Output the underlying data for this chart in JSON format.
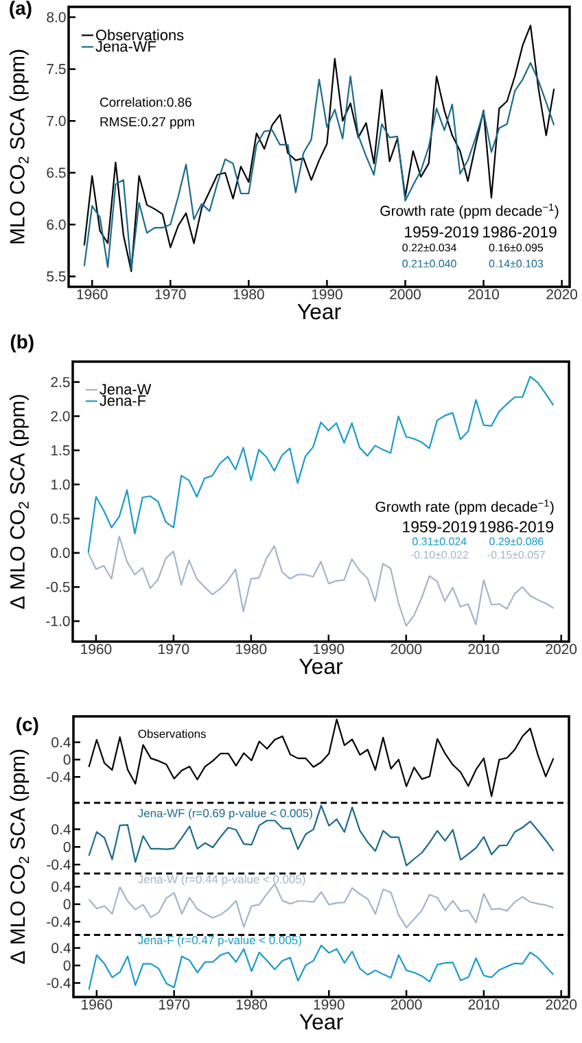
{
  "chart_data": [
    {
      "type": "line",
      "title": "(a)",
      "xlabel": "Year",
      "ylabel": "MLO  CO$_{2}$ SCA (ppm)",
      "x": [
        1959,
        1960,
        1961,
        1962,
        1963,
        1964,
        1965,
        1966,
        1967,
        1968,
        1969,
        1970,
        1971,
        1972,
        1973,
        1974,
        1975,
        1976,
        1977,
        1978,
        1979,
        1980,
        1981,
        1982,
        1983,
        1984,
        1985,
        1986,
        1987,
        1988,
        1989,
        1990,
        1991,
        1992,
        1993,
        1994,
        1995,
        1996,
        1997,
        1998,
        1999,
        2000,
        2001,
        2002,
        2003,
        2004,
        2005,
        2006,
        2007,
        2008,
        2009,
        2010,
        2011,
        2012,
        2013,
        2014,
        2015,
        2016,
        2017,
        2018,
        2019
      ],
      "xlim": [
        1957,
        2021
      ],
      "xticks": [
        1960,
        1970,
        1980,
        1990,
        2000,
        2010,
        2020
      ],
      "ylim": [
        5.4,
        8.1
      ],
      "yticks": [
        {
          "value": 5.5,
          "label": "5.5"
        },
        {
          "value": 6.0,
          "label": "6.0"
        },
        {
          "value": 6.5,
          "label": "6.5"
        },
        {
          "value": 7.0,
          "label": "7.0"
        },
        {
          "value": 7.5,
          "label": "7.5"
        },
        {
          "value": 8.0,
          "label": "8.0"
        }
      ],
      "legend": "top left",
      "series": [
        {
          "name": "Observations",
          "color": "#000000",
          "values": [
            5.8,
            6.47,
            5.94,
            5.82,
            6.6,
            5.9,
            5.55,
            6.47,
            6.19,
            6.15,
            6.1,
            5.78,
            5.99,
            6.11,
            5.82,
            6.16,
            6.32,
            6.48,
            6.5,
            6.25,
            6.56,
            6.41,
            6.88,
            6.73,
            6.96,
            7.06,
            6.69,
            6.62,
            6.64,
            6.43,
            6.62,
            6.78,
            7.6,
            7.0,
            7.17,
            6.84,
            6.98,
            6.59,
            7.3,
            6.61,
            6.83,
            6.27,
            6.71,
            6.46,
            6.59,
            7.43,
            7.1,
            6.86,
            6.71,
            6.42,
            6.77,
            7.1,
            6.26,
            7.12,
            7.19,
            7.43,
            7.73,
            7.92,
            7.32,
            6.86,
            7.31
          ]
        },
        {
          "name": "Jena-WF",
          "color": "#1b6a8c",
          "values": [
            5.6,
            6.18,
            6.07,
            5.59,
            6.39,
            6.43,
            5.57,
            6.21,
            5.92,
            5.97,
            5.97,
            6.0,
            6.27,
            6.58,
            6.05,
            6.2,
            6.13,
            6.4,
            6.63,
            6.59,
            6.3,
            6.3,
            6.77,
            6.9,
            6.91,
            6.77,
            6.77,
            6.31,
            6.69,
            6.82,
            7.4,
            6.94,
            7.11,
            6.83,
            7.43,
            6.86,
            6.66,
            6.48,
            6.97,
            6.84,
            6.85,
            6.23,
            6.38,
            6.52,
            6.75,
            7.12,
            6.91,
            7.16,
            6.49,
            6.62,
            6.84,
            7.09,
            6.7,
            6.93,
            6.97,
            7.29,
            7.4,
            7.56,
            7.39,
            7.18,
            6.96
          ]
        }
      ],
      "annotations": [
        "Correlation:0.86",
        "RMSE:0.27 ppm",
        "Growth rate (ppm decade$^{−1}$)",
        "1959-2019",
        "1986-2019",
        "0.22±0.034",
        "0.16±0.095",
        "0.21±0.040",
        "0.14±0.103"
      ]
    },
    {
      "type": "line",
      "title": "(b)",
      "xlabel": "Year",
      "ylabel": "Δ MLO  CO$_{2}$ SCA (ppm)",
      "x": [
        1959,
        1960,
        1961,
        1962,
        1963,
        1964,
        1965,
        1966,
        1967,
        1968,
        1969,
        1970,
        1971,
        1972,
        1973,
        1974,
        1975,
        1976,
        1977,
        1978,
        1979,
        1980,
        1981,
        1982,
        1983,
        1984,
        1985,
        1986,
        1987,
        1988,
        1989,
        1990,
        1991,
        1992,
        1993,
        1994,
        1995,
        1996,
        1997,
        1998,
        1999,
        2000,
        2001,
        2002,
        2003,
        2004,
        2005,
        2006,
        2007,
        2008,
        2009,
        2010,
        2011,
        2012,
        2013,
        2014,
        2015,
        2016,
        2017,
        2018,
        2019
      ],
      "xlim": [
        1957,
        2021
      ],
      "xticks": [
        1960,
        1970,
        1980,
        1990,
        2000,
        2010,
        2020
      ],
      "ylim": [
        -1.3,
        2.8
      ],
      "yticks": [
        {
          "value": -1.0,
          "label": "-1.0"
        },
        {
          "value": -0.5,
          "label": "-0.5"
        },
        {
          "value": 0.0,
          "label": "0.0"
        },
        {
          "value": 0.5,
          "label": "0.5"
        },
        {
          "value": 1.0,
          "label": "1.0"
        },
        {
          "value": 1.5,
          "label": "1.5"
        },
        {
          "value": 2.0,
          "label": "2.0"
        },
        {
          "value": 2.5,
          "label": "2.5"
        }
      ],
      "legend": "top left",
      "series": [
        {
          "name": "Jena-W",
          "color": "#a3b5c9",
          "values": [
            0.0,
            -0.24,
            -0.19,
            -0.38,
            0.24,
            -0.13,
            -0.32,
            -0.22,
            -0.52,
            -0.39,
            -0.08,
            0.02,
            -0.47,
            -0.11,
            -0.38,
            -0.5,
            -0.61,
            -0.53,
            -0.41,
            -0.24,
            -0.86,
            -0.38,
            -0.37,
            -0.08,
            0.1,
            -0.28,
            -0.38,
            -0.32,
            -0.32,
            -0.35,
            -0.13,
            -0.45,
            -0.41,
            -0.4,
            -0.09,
            -0.26,
            -0.37,
            -0.71,
            -0.16,
            -0.23,
            -0.73,
            -1.07,
            -0.92,
            -0.66,
            -0.34,
            -0.42,
            -0.71,
            -0.51,
            -0.79,
            -0.75,
            -1.05,
            -0.4,
            -0.76,
            -0.75,
            -0.82,
            -0.6,
            -0.5,
            -0.63,
            -0.69,
            -0.74,
            -0.81
          ]
        },
        {
          "name": "Jena-F",
          "color": "#1a9bc9",
          "values": [
            0.0,
            0.82,
            0.62,
            0.37,
            0.53,
            0.92,
            0.28,
            0.81,
            0.83,
            0.75,
            0.45,
            0.37,
            1.13,
            1.06,
            0.82,
            1.09,
            1.13,
            1.31,
            1.41,
            1.22,
            1.54,
            1.06,
            1.51,
            1.4,
            1.2,
            1.43,
            1.53,
            1.02,
            1.41,
            1.55,
            1.91,
            1.79,
            1.9,
            1.61,
            1.9,
            1.54,
            1.42,
            1.57,
            1.51,
            1.46,
            2.0,
            1.7,
            1.67,
            1.62,
            1.53,
            1.94,
            2.01,
            2.05,
            1.66,
            1.78,
            2.24,
            1.87,
            1.86,
            2.07,
            2.18,
            2.28,
            2.28,
            2.58,
            2.49,
            2.33,
            2.16
          ]
        }
      ],
      "annotations": [
        "Growth rate (ppm decade$^{−1}$)",
        "1959-2019",
        "1986-2019",
        "0.31±0.024",
        "0.29±0.086",
        "-0.10±0.022",
        "-0.15±0.057"
      ]
    },
    {
      "type": "line",
      "title": "(c)",
      "ylabel": "Δ MLO  CO$_{2}$ SCA (ppm)",
      "x": [
        1959,
        1960,
        1961,
        1962,
        1963,
        1964,
        1965,
        1966,
        1967,
        1968,
        1969,
        1970,
        1971,
        1972,
        1973,
        1974,
        1975,
        1976,
        1977,
        1978,
        1979,
        1980,
        1981,
        1982,
        1983,
        1984,
        1985,
        1986,
        1987,
        1988,
        1989,
        1990,
        1991,
        1992,
        1993,
        1994,
        1995,
        1996,
        1997,
        1998,
        1999,
        2000,
        2001,
        2002,
        2003,
        2004,
        2005,
        2006,
        2007,
        2008,
        2009,
        2010,
        2011,
        2012,
        2013,
        2014,
        2015,
        2016,
        2017,
        2018,
        2019
      ],
      "xlim": [
        1957,
        2021
      ],
      "ylim": [
        -1.0,
        1.0
      ],
      "yticks": [
        -0.4,
        0,
        0.4
      ],
      "tick_labels": "y",
      "ref_lines": [
        {
          "axis": "y",
          "value": -1.0,
          "line_style": "dashed"
        }
      ],
      "series": [
        {
          "name": "Observations",
          "color": "#000000",
          "values": [
            -0.17,
            0.46,
            -0.08,
            -0.24,
            0.52,
            -0.23,
            -0.56,
            0.34,
            0.03,
            -0.03,
            -0.11,
            -0.44,
            -0.25,
            -0.16,
            -0.46,
            -0.16,
            -0.03,
            0.14,
            0.14,
            -0.14,
            0.15,
            -0.02,
            0.42,
            0.25,
            0.46,
            0.54,
            0.12,
            0.03,
            0.03,
            -0.17,
            -0.06,
            0.14,
            0.93,
            0.33,
            0.47,
            0.11,
            0.23,
            -0.24,
            0.51,
            -0.21,
            0.0,
            -0.62,
            -0.18,
            -0.45,
            -0.39,
            0.48,
            0.14,
            -0.12,
            -0.29,
            -0.61,
            -0.23,
            0.03,
            -0.85,
            0.0,
            0.04,
            0.23,
            0.54,
            0.72,
            0.1,
            -0.39,
            0.03
          ]
        }
      ]
    },
    {
      "type": "line",
      "x": [
        1959,
        1960,
        1961,
        1962,
        1963,
        1964,
        1965,
        1966,
        1967,
        1968,
        1969,
        1970,
        1971,
        1972,
        1973,
        1974,
        1975,
        1976,
        1977,
        1978,
        1979,
        1980,
        1981,
        1982,
        1983,
        1984,
        1985,
        1986,
        1987,
        1988,
        1989,
        1990,
        1991,
        1992,
        1993,
        1994,
        1995,
        1996,
        1997,
        1998,
        1999,
        2000,
        2001,
        2002,
        2003,
        2004,
        2005,
        2006,
        2007,
        2008,
        2009,
        2010,
        2011,
        2012,
        2013,
        2014,
        2015,
        2016,
        2017,
        2018,
        2019
      ],
      "xlim": [
        1957,
        2021
      ],
      "ylim": [
        -0.6,
        1.0
      ],
      "yticks": [
        -0.4,
        0,
        0.4
      ],
      "tick_labels": "y",
      "ref_lines": [
        {
          "axis": "y",
          "value": 1.0,
          "line_style": "dashed"
        },
        {
          "axis": "y",
          "value": -0.6,
          "line_style": "dashed"
        }
      ],
      "series": [
        {
          "name": "Jena-WF (r=0.69 p-value < 0.005)",
          "color": "#1b6a8c",
          "values": [
            -0.2,
            0.34,
            0.21,
            -0.28,
            0.49,
            0.5,
            -0.34,
            0.25,
            -0.04,
            -0.04,
            -0.05,
            -0.03,
            0.21,
            0.47,
            -0.04,
            0.09,
            -0.01,
            0.23,
            0.44,
            0.39,
            0.07,
            0.05,
            0.49,
            0.6,
            0.6,
            0.42,
            0.42,
            -0.05,
            0.29,
            0.4,
            0.94,
            0.48,
            0.63,
            0.34,
            0.9,
            0.37,
            0.11,
            -0.09,
            0.37,
            0.22,
            0.22,
            -0.42,
            -0.27,
            -0.13,
            0.1,
            0.37,
            0.14,
            0.39,
            -0.29,
            -0.16,
            -0.02,
            0.23,
            -0.17,
            0.03,
            0.04,
            0.34,
            0.44,
            0.58,
            0.37,
            0.15,
            -0.09
          ]
        }
      ]
    },
    {
      "type": "line",
      "x": [
        1959,
        1960,
        1961,
        1962,
        1963,
        1964,
        1965,
        1966,
        1967,
        1968,
        1969,
        1970,
        1971,
        1972,
        1973,
        1974,
        1975,
        1976,
        1977,
        1978,
        1979,
        1980,
        1981,
        1982,
        1983,
        1984,
        1985,
        1986,
        1987,
        1988,
        1989,
        1990,
        1991,
        1992,
        1993,
        1994,
        1995,
        1996,
        1997,
        1998,
        1999,
        2000,
        2001,
        2002,
        2003,
        2004,
        2005,
        2006,
        2007,
        2008,
        2009,
        2010,
        2011,
        2012,
        2013,
        2014,
        2015,
        2016,
        2017,
        2018,
        2019
      ],
      "xlim": [
        1957,
        2021
      ],
      "ylim": [
        -0.7,
        0.7
      ],
      "yticks": [
        -0.4,
        0,
        0.4
      ],
      "tick_labels": "y",
      "ref_lines": [
        {
          "axis": "y",
          "value": 0.7,
          "line_style": "dashed"
        },
        {
          "axis": "y",
          "value": -0.7,
          "line_style": "dashed"
        }
      ],
      "series": [
        {
          "name": "Jena-W (r=0.44 p-value < 0.005)",
          "color": "#a3b5c9",
          "values": [
            0.11,
            -0.1,
            -0.04,
            -0.22,
            0.39,
            0.07,
            -0.12,
            -0.01,
            -0.3,
            -0.19,
            0.14,
            0.26,
            -0.22,
            0.15,
            -0.11,
            -0.22,
            -0.31,
            -0.24,
            -0.11,
            0.08,
            -0.52,
            -0.04,
            -0.01,
            0.24,
            0.46,
            0.08,
            0.01,
            0.07,
            0.07,
            0.05,
            0.28,
            -0.01,
            0.03,
            0.04,
            0.37,
            0.23,
            0.12,
            -0.22,
            0.34,
            0.27,
            -0.24,
            -0.53,
            -0.34,
            -0.14,
            0.22,
            0.15,
            -0.14,
            0.08,
            -0.16,
            -0.14,
            -0.42,
            0.24,
            -0.12,
            -0.1,
            -0.15,
            0.05,
            0.17,
            0.05,
            0.01,
            -0.02,
            -0.08
          ]
        }
      ]
    },
    {
      "type": "line",
      "xlabel": "Year",
      "x": [
        1959,
        1960,
        1961,
        1962,
        1963,
        1964,
        1965,
        1966,
        1967,
        1968,
        1969,
        1970,
        1971,
        1972,
        1973,
        1974,
        1975,
        1976,
        1977,
        1978,
        1979,
        1980,
        1981,
        1982,
        1983,
        1984,
        1985,
        1986,
        1987,
        1988,
        1989,
        1990,
        1991,
        1992,
        1993,
        1994,
        1995,
        1996,
        1997,
        1998,
        1999,
        2000,
        2001,
        2002,
        2003,
        2004,
        2005,
        2006,
        2007,
        2008,
        2009,
        2010,
        2011,
        2012,
        2013,
        2014,
        2015,
        2016,
        2017,
        2018,
        2019
      ],
      "xlim": [
        1957,
        2021
      ],
      "xticks": [
        1960,
        1970,
        1980,
        1990,
        2000,
        2010,
        2020
      ],
      "ylim": [
        -0.72,
        0.7
      ],
      "yticks": [
        -0.4,
        0,
        0.4
      ],
      "ref_lines": [
        {
          "axis": "y",
          "value": 0.7,
          "line_style": "dashed"
        }
      ],
      "series": [
        {
          "name": "Jena-F (r=0.47 p-value < 0.005)",
          "color": "#1a9bc9",
          "values": [
            -0.55,
            0.24,
            0.04,
            -0.27,
            -0.15,
            0.21,
            -0.45,
            0.04,
            0.04,
            -0.07,
            -0.41,
            -0.5,
            0.21,
            0.12,
            -0.16,
            0.08,
            0.08,
            0.24,
            0.3,
            0.08,
            0.38,
            -0.13,
            0.3,
            0.11,
            -0.09,
            0.11,
            0.18,
            -0.35,
            0.01,
            0.11,
            0.46,
            0.29,
            0.38,
            0.06,
            0.32,
            -0.07,
            -0.21,
            -0.11,
            -0.2,
            -0.28,
            0.24,
            -0.11,
            -0.16,
            -0.24,
            -0.37,
            0.02,
            0.06,
            0.07,
            -0.34,
            -0.27,
            0.17,
            -0.23,
            -0.27,
            -0.1,
            -0.02,
            0.05,
            0.04,
            0.3,
            0.18,
            -0.02,
            -0.21
          ]
        }
      ]
    }
  ]
}
